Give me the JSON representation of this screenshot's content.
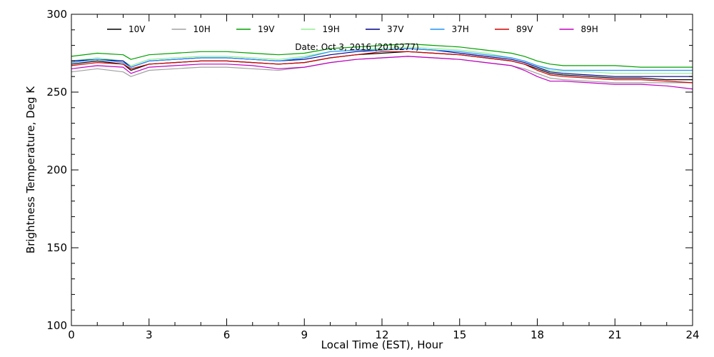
{
  "chart_data": {
    "type": "line",
    "title": "",
    "annotation": "Date: Oct  3, 2016 (2016277)",
    "xlabel": "Local Time (EST), Hour",
    "ylabel": "Brightness Temperature, Deg  K",
    "xlim": [
      0,
      24
    ],
    "ylim": [
      100,
      300
    ],
    "xticks": [
      0,
      3,
      6,
      9,
      12,
      15,
      18,
      21,
      24
    ],
    "yticks": [
      100,
      150,
      200,
      250,
      300
    ],
    "grid": false,
    "legend_position": "top",
    "x": [
      0,
      1,
      2,
      2.3,
      3,
      4,
      5,
      6,
      7,
      8,
      9,
      10,
      11,
      12,
      13,
      14,
      15,
      16,
      17,
      17.5,
      18,
      18.5,
      19,
      20,
      21,
      22,
      23,
      24
    ],
    "series": [
      {
        "name": "10V",
        "color": "#000000",
        "values": [
          268,
          270,
          268,
          264,
          268,
          269,
          270,
          270,
          269,
          268,
          269,
          272,
          274,
          275,
          276,
          275,
          274,
          272,
          270,
          268,
          265,
          262,
          261,
          260,
          259,
          259,
          258,
          258
        ]
      },
      {
        "name": "10H",
        "color": "#a0a0a0",
        "values": [
          263,
          265,
          263,
          260,
          264,
          265,
          266,
          266,
          265,
          264,
          266,
          269,
          271,
          272,
          273,
          272,
          271,
          269,
          267,
          265,
          262,
          259,
          258,
          257,
          256,
          256,
          256,
          256
        ]
      },
      {
        "name": "19V",
        "color": "#00a000",
        "values": [
          273,
          275,
          274,
          271,
          274,
          275,
          276,
          276,
          275,
          274,
          275,
          278,
          279,
          280,
          281,
          280,
          279,
          277,
          275,
          273,
          270,
          268,
          267,
          267,
          267,
          266,
          266,
          266
        ]
      },
      {
        "name": "19H",
        "color": "#90ee90",
        "values": [
          270,
          272,
          270,
          267,
          271,
          272,
          273,
          273,
          272,
          271,
          273,
          276,
          277,
          278,
          279,
          278,
          277,
          275,
          272,
          270,
          267,
          264,
          263,
          263,
          262,
          262,
          262,
          262
        ]
      },
      {
        "name": "37V",
        "color": "#00008b",
        "values": [
          270,
          271,
          270,
          266,
          270,
          271,
          272,
          272,
          271,
          270,
          271,
          274,
          276,
          277,
          278,
          277,
          275,
          273,
          271,
          269,
          266,
          263,
          262,
          261,
          260,
          260,
          260,
          260
        ]
      },
      {
        "name": "37H",
        "color": "#1e90ff",
        "values": [
          269,
          271,
          269,
          266,
          270,
          271,
          272,
          272,
          271,
          270,
          272,
          276,
          277,
          277,
          278,
          277,
          276,
          274,
          272,
          270,
          267,
          265,
          264,
          264,
          264,
          264,
          264,
          264
        ]
      },
      {
        "name": "89V",
        "color": "#d00000",
        "values": [
          267,
          269,
          268,
          265,
          268,
          269,
          270,
          270,
          269,
          268,
          269,
          272,
          274,
          276,
          276,
          275,
          274,
          272,
          270,
          268,
          264,
          261,
          260,
          259,
          258,
          258,
          257,
          256
        ]
      },
      {
        "name": "89H",
        "color": "#c000c0",
        "values": [
          265,
          267,
          266,
          262,
          266,
          267,
          268,
          268,
          267,
          265,
          266,
          269,
          271,
          272,
          273,
          272,
          271,
          269,
          267,
          264,
          260,
          257,
          257,
          256,
          255,
          255,
          254,
          252
        ]
      }
    ]
  }
}
